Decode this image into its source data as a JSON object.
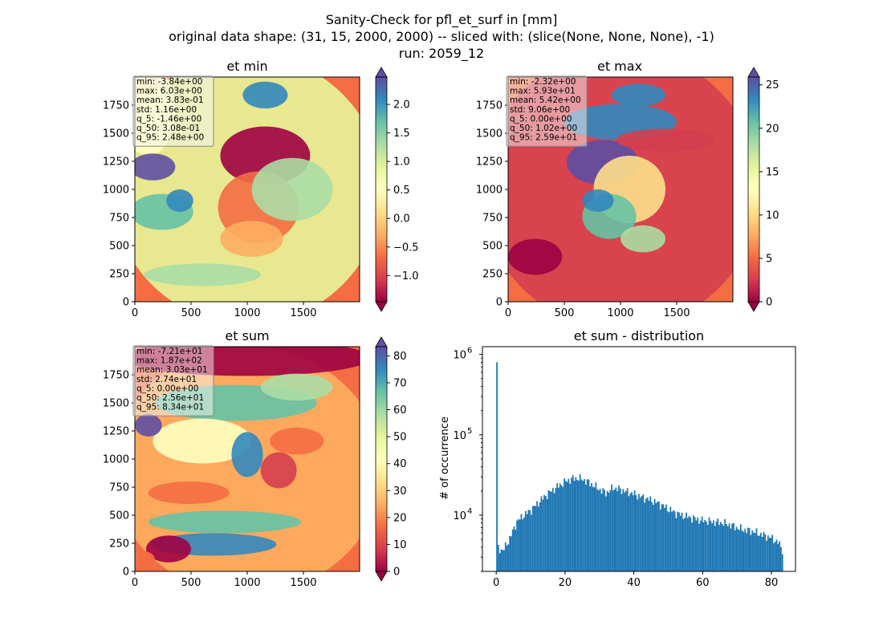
{
  "figure": {
    "title_lines": [
      "Sanity-Check for pfl_et_surf in [mm]",
      "original data shape: (31, 15, 2000, 2000) -- sliced with: (slice(None, None, None), -1)",
      "run: 2059_12"
    ]
  },
  "colormap": {
    "name": "Spectral",
    "stops": [
      "#9e0142",
      "#d53e4f",
      "#f46d43",
      "#fdae61",
      "#fee08b",
      "#ffffbf",
      "#e6f598",
      "#abdda4",
      "#66c2a5",
      "#3288bd",
      "#5e4fa2"
    ],
    "land_background": "#f46d43"
  },
  "chart_data": [
    {
      "type": "heatmap",
      "title": "et min",
      "xlim": [
        0,
        2000
      ],
      "ylim": [
        0,
        2000
      ],
      "xticks": [
        "0",
        "500",
        "1000",
        "1500"
      ],
      "yticks": [
        "0",
        "250",
        "500",
        "750",
        "1000",
        "1250",
        "1500",
        "1750"
      ],
      "colorbar": {
        "vmin": -1.46,
        "vmax": 2.48,
        "extend": "both",
        "ticks": [
          "−1.0",
          "−0.5",
          "0.0",
          "0.5",
          "1.0",
          "1.5",
          "2.0"
        ],
        "tick_values": [
          -1.0,
          -0.5,
          0.0,
          0.5,
          1.0,
          1.5,
          2.0
        ]
      },
      "stats": [
        "min: -3.84e+00",
        "max: 6.03e+00",
        "mean: 3.83e-01",
        "std: 1.16e+00",
        "q_5: -1.46e+00",
        "q_50: 3.08e-01",
        "q_95: 2.48e+00"
      ]
    },
    {
      "type": "heatmap",
      "title": "et max",
      "xlim": [
        0,
        2000
      ],
      "ylim": [
        0,
        2000
      ],
      "xticks": [
        "0",
        "500",
        "1000",
        "1500"
      ],
      "yticks": [
        "0",
        "250",
        "500",
        "750",
        "1000",
        "1250",
        "1500",
        "1750"
      ],
      "colorbar": {
        "vmin": 0.0,
        "vmax": 25.9,
        "extend": "both",
        "ticks": [
          "0",
          "5",
          "10",
          "15",
          "20",
          "25"
        ],
        "tick_values": [
          0,
          5,
          10,
          15,
          20,
          25
        ]
      },
      "stats": [
        "min: -2.32e+00",
        "max: 5.93e+01",
        "mean: 5.42e+00",
        "std: 9.06e+00",
        "q_5: 0.00e+00",
        "q_50: 1.02e+00",
        "q_95: 2.59e+01"
      ]
    },
    {
      "type": "heatmap",
      "title": "et sum",
      "xlim": [
        0,
        2000
      ],
      "ylim": [
        0,
        2000
      ],
      "xticks": [
        "0",
        "500",
        "1000",
        "1500"
      ],
      "yticks": [
        "0",
        "250",
        "500",
        "750",
        "1000",
        "1250",
        "1500",
        "1750"
      ],
      "colorbar": {
        "vmin": 0.0,
        "vmax": 83.4,
        "extend": "both",
        "ticks": [
          "0",
          "10",
          "20",
          "30",
          "40",
          "50",
          "60",
          "70",
          "80"
        ],
        "tick_values": [
          0,
          10,
          20,
          30,
          40,
          50,
          60,
          70,
          80
        ]
      },
      "stats": [
        "min: -7.21e+01",
        "max: 1.87e+02",
        "mean: 3.03e+01",
        "std: 2.74e+01",
        "q_5: 0.00e+00",
        "q_50: 2.56e+01",
        "q_95: 8.34e+01"
      ]
    },
    {
      "type": "bar",
      "title": "et sum - distribution",
      "ylabel": "# of occurrence",
      "yscale": "log",
      "xlim": [
        -4,
        87
      ],
      "ylim": [
        2000,
        1250000
      ],
      "xticks": [
        0,
        20,
        40,
        60,
        80
      ],
      "xtick_labels": [
        "0",
        "20",
        "40",
        "60",
        "80"
      ],
      "yticks": [
        10000,
        100000,
        1000000
      ],
      "ytick_base": "10",
      "ytick_exps": [
        "4",
        "5",
        "6"
      ],
      "bar_color": "#1f77b4",
      "bins": {
        "start": 0.0,
        "width": 0.417,
        "count": 200
      },
      "spike": {
        "x": 0.0,
        "count": 800000
      },
      "envelope": [
        [
          0.4,
          4000
        ],
        [
          2,
          3600
        ],
        [
          4,
          5200
        ],
        [
          6,
          8300
        ],
        [
          8,
          10000
        ],
        [
          10,
          11500
        ],
        [
          12,
          14000
        ],
        [
          14,
          17000
        ],
        [
          16,
          20000
        ],
        [
          18,
          23000
        ],
        [
          20,
          26000
        ],
        [
          22,
          28500
        ],
        [
          24,
          29000
        ],
        [
          26,
          27000
        ],
        [
          28,
          24000
        ],
        [
          30,
          21000
        ],
        [
          32,
          19000
        ],
        [
          34,
          22000
        ],
        [
          36,
          21000
        ],
        [
          38,
          19500
        ],
        [
          40,
          18500
        ],
        [
          42,
          17000
        ],
        [
          44,
          16000
        ],
        [
          46,
          14800
        ],
        [
          48,
          13500
        ],
        [
          50,
          12000
        ],
        [
          52,
          10800
        ],
        [
          54,
          10000
        ],
        [
          56,
          9500
        ],
        [
          58,
          9000
        ],
        [
          60,
          8600
        ],
        [
          62,
          8400
        ],
        [
          64,
          8200
        ],
        [
          66,
          8000
        ],
        [
          68,
          7600
        ],
        [
          70,
          7000
        ],
        [
          72,
          6600
        ],
        [
          74,
          6400
        ],
        [
          76,
          6000
        ],
        [
          78,
          5600
        ],
        [
          80,
          5200
        ],
        [
          82,
          4600
        ],
        [
          83.4,
          3600
        ]
      ]
    }
  ]
}
